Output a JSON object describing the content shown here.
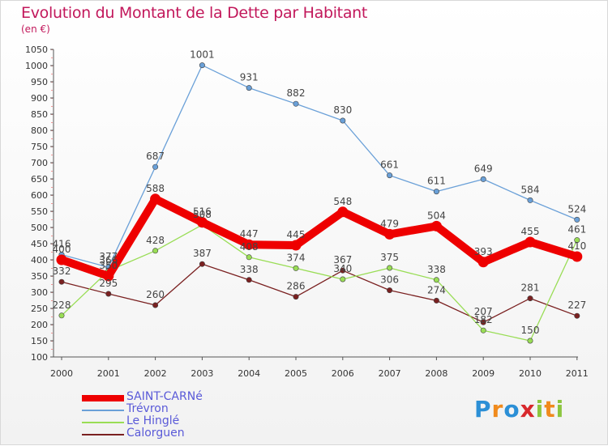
{
  "chart_data": {
    "type": "line",
    "title": "Evolution du Montant de la Dette par Habitant",
    "subtitle": "(en €)",
    "x": [
      "2000",
      "2001",
      "2002",
      "2003",
      "2004",
      "2005",
      "2006",
      "2007",
      "2008",
      "2009",
      "2010",
      "2011"
    ],
    "yticks": [
      100,
      150,
      200,
      250,
      300,
      350,
      400,
      450,
      500,
      550,
      600,
      650,
      700,
      750,
      800,
      850,
      900,
      950,
      1000,
      1050
    ],
    "ylim": [
      100,
      1050
    ],
    "grid": false,
    "legend_position": "bottom-left",
    "series": [
      {
        "name": "SAINT-CARNé",
        "color": "#ee0000",
        "values": [
          400,
          350,
          588,
          516,
          447,
          445,
          548,
          479,
          504,
          393,
          455,
          410
        ]
      },
      {
        "name": "Trévron",
        "color": "#6aa0d8",
        "values": [
          416,
          377,
          687,
          1001,
          931,
          882,
          830,
          661,
          611,
          649,
          584,
          524
        ]
      },
      {
        "name": "Le Hinglé",
        "color": "#99dd55",
        "values": [
          228,
          366,
          428,
          508,
          408,
          374,
          340,
          375,
          338,
          182,
          150,
          461
        ]
      },
      {
        "name": "Calorguen",
        "color": "#7a2020",
        "values": [
          332,
          295,
          260,
          387,
          338,
          286,
          367,
          306,
          274,
          207,
          281,
          227
        ]
      }
    ]
  },
  "logo": {
    "letters": [
      "P",
      "r",
      "o",
      "x",
      "i",
      "t",
      "i"
    ],
    "colors": [
      "#2b8fd6",
      "#f08a1c",
      "#2b8fd6",
      "#d8282c",
      "#8cc63f",
      "#f08a1c",
      "#8cc63f"
    ]
  }
}
